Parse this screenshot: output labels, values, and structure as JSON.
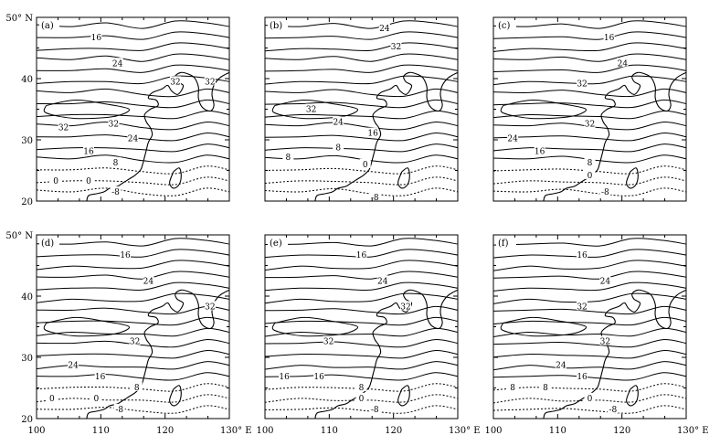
{
  "figure": {
    "panels": [
      {
        "label": "(a)",
        "labels": [
          [
            "16",
            0.31,
            0.11
          ],
          [
            "24",
            0.42,
            0.25
          ],
          [
            "32",
            0.72,
            0.35
          ],
          [
            "32",
            0.9,
            0.35
          ],
          [
            "32",
            0.14,
            0.6
          ],
          [
            "32",
            0.4,
            0.58
          ],
          [
            "24",
            0.5,
            0.66
          ],
          [
            "16",
            0.27,
            0.73
          ],
          [
            "8",
            0.41,
            0.79
          ],
          [
            "0",
            0.1,
            0.89
          ],
          [
            "0",
            0.27,
            0.89
          ],
          [
            "-8",
            0.41,
            0.95
          ]
        ]
      },
      {
        "label": "(b)",
        "labels": [
          [
            "24",
            0.62,
            0.06
          ],
          [
            "32",
            0.68,
            0.16
          ],
          [
            "32",
            0.24,
            0.5
          ],
          [
            "24",
            0.38,
            0.57
          ],
          [
            "16",
            0.56,
            0.63
          ],
          [
            "8",
            0.38,
            0.71
          ],
          [
            "8",
            0.12,
            0.76
          ],
          [
            "0",
            0.52,
            0.8
          ],
          [
            "-8",
            0.57,
            1.08
          ]
        ]
      },
      {
        "label": "(c)",
        "labels": [
          [
            "16",
            0.6,
            0.11
          ],
          [
            "24",
            0.67,
            0.25
          ],
          [
            "32",
            0.46,
            0.36
          ],
          [
            "32",
            0.5,
            0.58
          ],
          [
            "24",
            0.1,
            0.66
          ],
          [
            "16",
            0.24,
            0.73
          ],
          [
            "8",
            0.5,
            0.79
          ],
          [
            "0",
            0.5,
            0.86
          ],
          [
            "-8",
            0.58,
            0.95
          ]
        ]
      },
      {
        "label": "(d)",
        "labels": [
          [
            "16",
            0.46,
            0.11
          ],
          [
            "24",
            0.58,
            0.25
          ],
          [
            "32",
            0.9,
            0.39
          ],
          [
            "32",
            0.51,
            0.58
          ],
          [
            "24",
            0.19,
            0.71
          ],
          [
            "16",
            0.33,
            0.77
          ],
          [
            "8",
            0.52,
            0.83
          ],
          [
            "0",
            0.08,
            0.89
          ],
          [
            "0",
            0.31,
            0.89
          ],
          [
            "-8",
            0.43,
            0.95
          ]
        ]
      },
      {
        "label": "(e)",
        "labels": [
          [
            "16",
            0.5,
            0.11
          ],
          [
            "24",
            0.61,
            0.25
          ],
          [
            "32",
            0.73,
            0.39
          ],
          [
            "32",
            0.33,
            0.58
          ],
          [
            "16",
            0.1,
            0.77
          ],
          [
            "16",
            0.28,
            0.77
          ],
          [
            "8",
            0.5,
            0.83
          ],
          [
            "0",
            0.5,
            0.89
          ],
          [
            "-8",
            0.57,
            0.95
          ]
        ]
      },
      {
        "label": "(f)",
        "labels": [
          [
            "16",
            0.46,
            0.11
          ],
          [
            "24",
            0.58,
            0.25
          ],
          [
            "32",
            0.46,
            0.39
          ],
          [
            "32",
            0.58,
            0.58
          ],
          [
            "24",
            0.35,
            0.71
          ],
          [
            "16",
            0.46,
            0.77
          ],
          [
            "8",
            0.1,
            0.83
          ],
          [
            "8",
            0.27,
            0.83
          ],
          [
            "0",
            0.5,
            0.89
          ],
          [
            "-8",
            0.62,
            0.95
          ]
        ]
      }
    ],
    "lat_labels": [
      "50° N",
      "40",
      "30",
      "20"
    ],
    "lon_labels": [
      "100",
      "110",
      "120",
      "130° E"
    ]
  }
}
